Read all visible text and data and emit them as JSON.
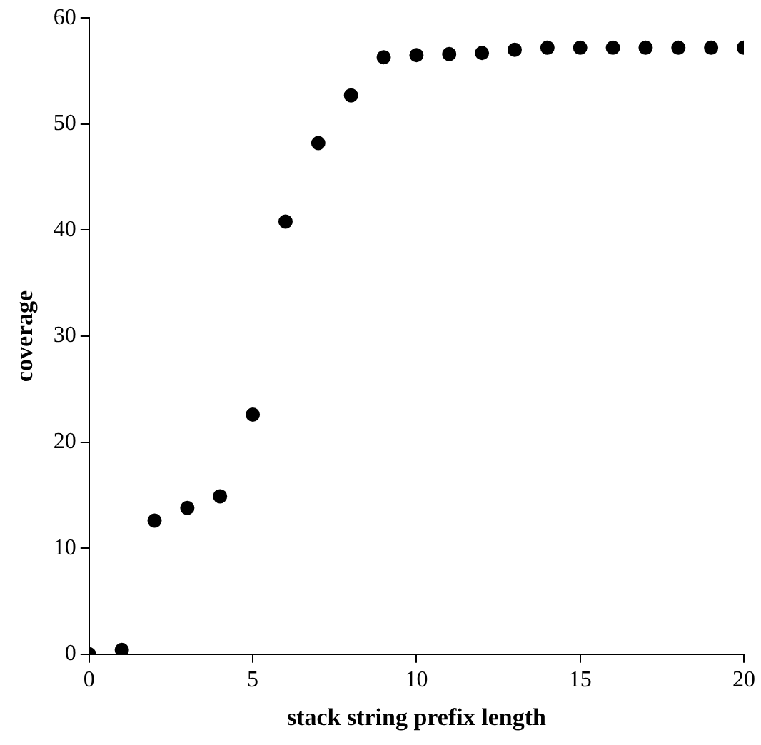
{
  "chart_data": {
    "type": "scatter",
    "xlabel": "stack string prefix length",
    "ylabel": "coverage",
    "x": [
      0,
      1,
      2,
      3,
      4,
      5,
      6,
      7,
      8,
      9,
      10,
      11,
      12,
      13,
      14,
      15,
      16,
      17,
      18,
      19,
      20
    ],
    "values": [
      0,
      0.4,
      12.6,
      13.8,
      14.9,
      22.6,
      40.8,
      48.2,
      52.7,
      56.3,
      56.5,
      56.6,
      56.7,
      57.0,
      57.2,
      57.2,
      57.2,
      57.2,
      57.2,
      57.2,
      57.2
    ],
    "color": "#000000",
    "marker": "circle",
    "grid": false,
    "legend": false,
    "xlim": [
      0,
      20
    ],
    "xticks": [
      0,
      5,
      10,
      15,
      20
    ],
    "ylim": [
      0,
      60
    ],
    "yticks": [
      0,
      10,
      20,
      30,
      40,
      50,
      60
    ]
  }
}
